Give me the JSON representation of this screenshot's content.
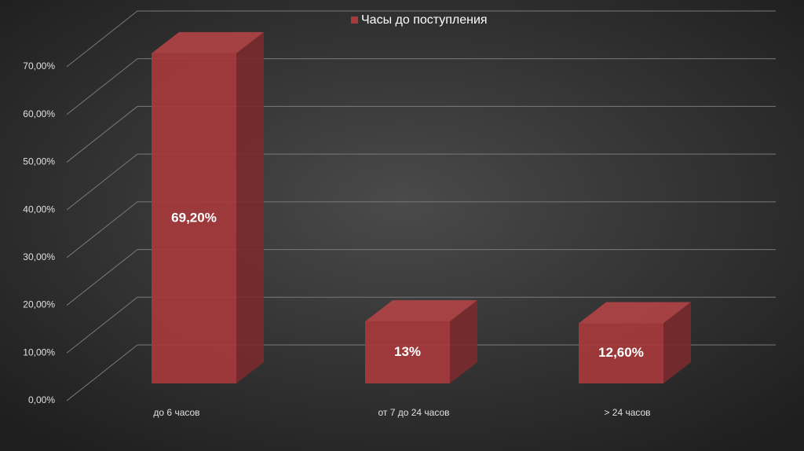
{
  "chart_data": {
    "type": "bar3d",
    "categories": [
      "до 6 часов",
      "от 7 до 24 часов",
      "> 24 часов"
    ],
    "series": [
      {
        "name": "Часы до поступления",
        "color": "#a63a3c",
        "values": [
          69.2,
          13,
          12.6
        ],
        "value_labels": [
          "69,20%",
          "13%",
          "12,60%"
        ]
      }
    ],
    "ylim": [
      0,
      70
    ],
    "yticks": [
      {
        "value": 0,
        "label": "0,00%"
      },
      {
        "value": 10,
        "label": "10,00%"
      },
      {
        "value": 20,
        "label": "20,00%"
      },
      {
        "value": 30,
        "label": "30,00%"
      },
      {
        "value": 40,
        "label": "40,00%"
      },
      {
        "value": 50,
        "label": "50,00%"
      },
      {
        "value": 60,
        "label": "60,00%"
      },
      {
        "value": 70,
        "label": "70,00%"
      }
    ],
    "grid": true,
    "legend": "top"
  }
}
